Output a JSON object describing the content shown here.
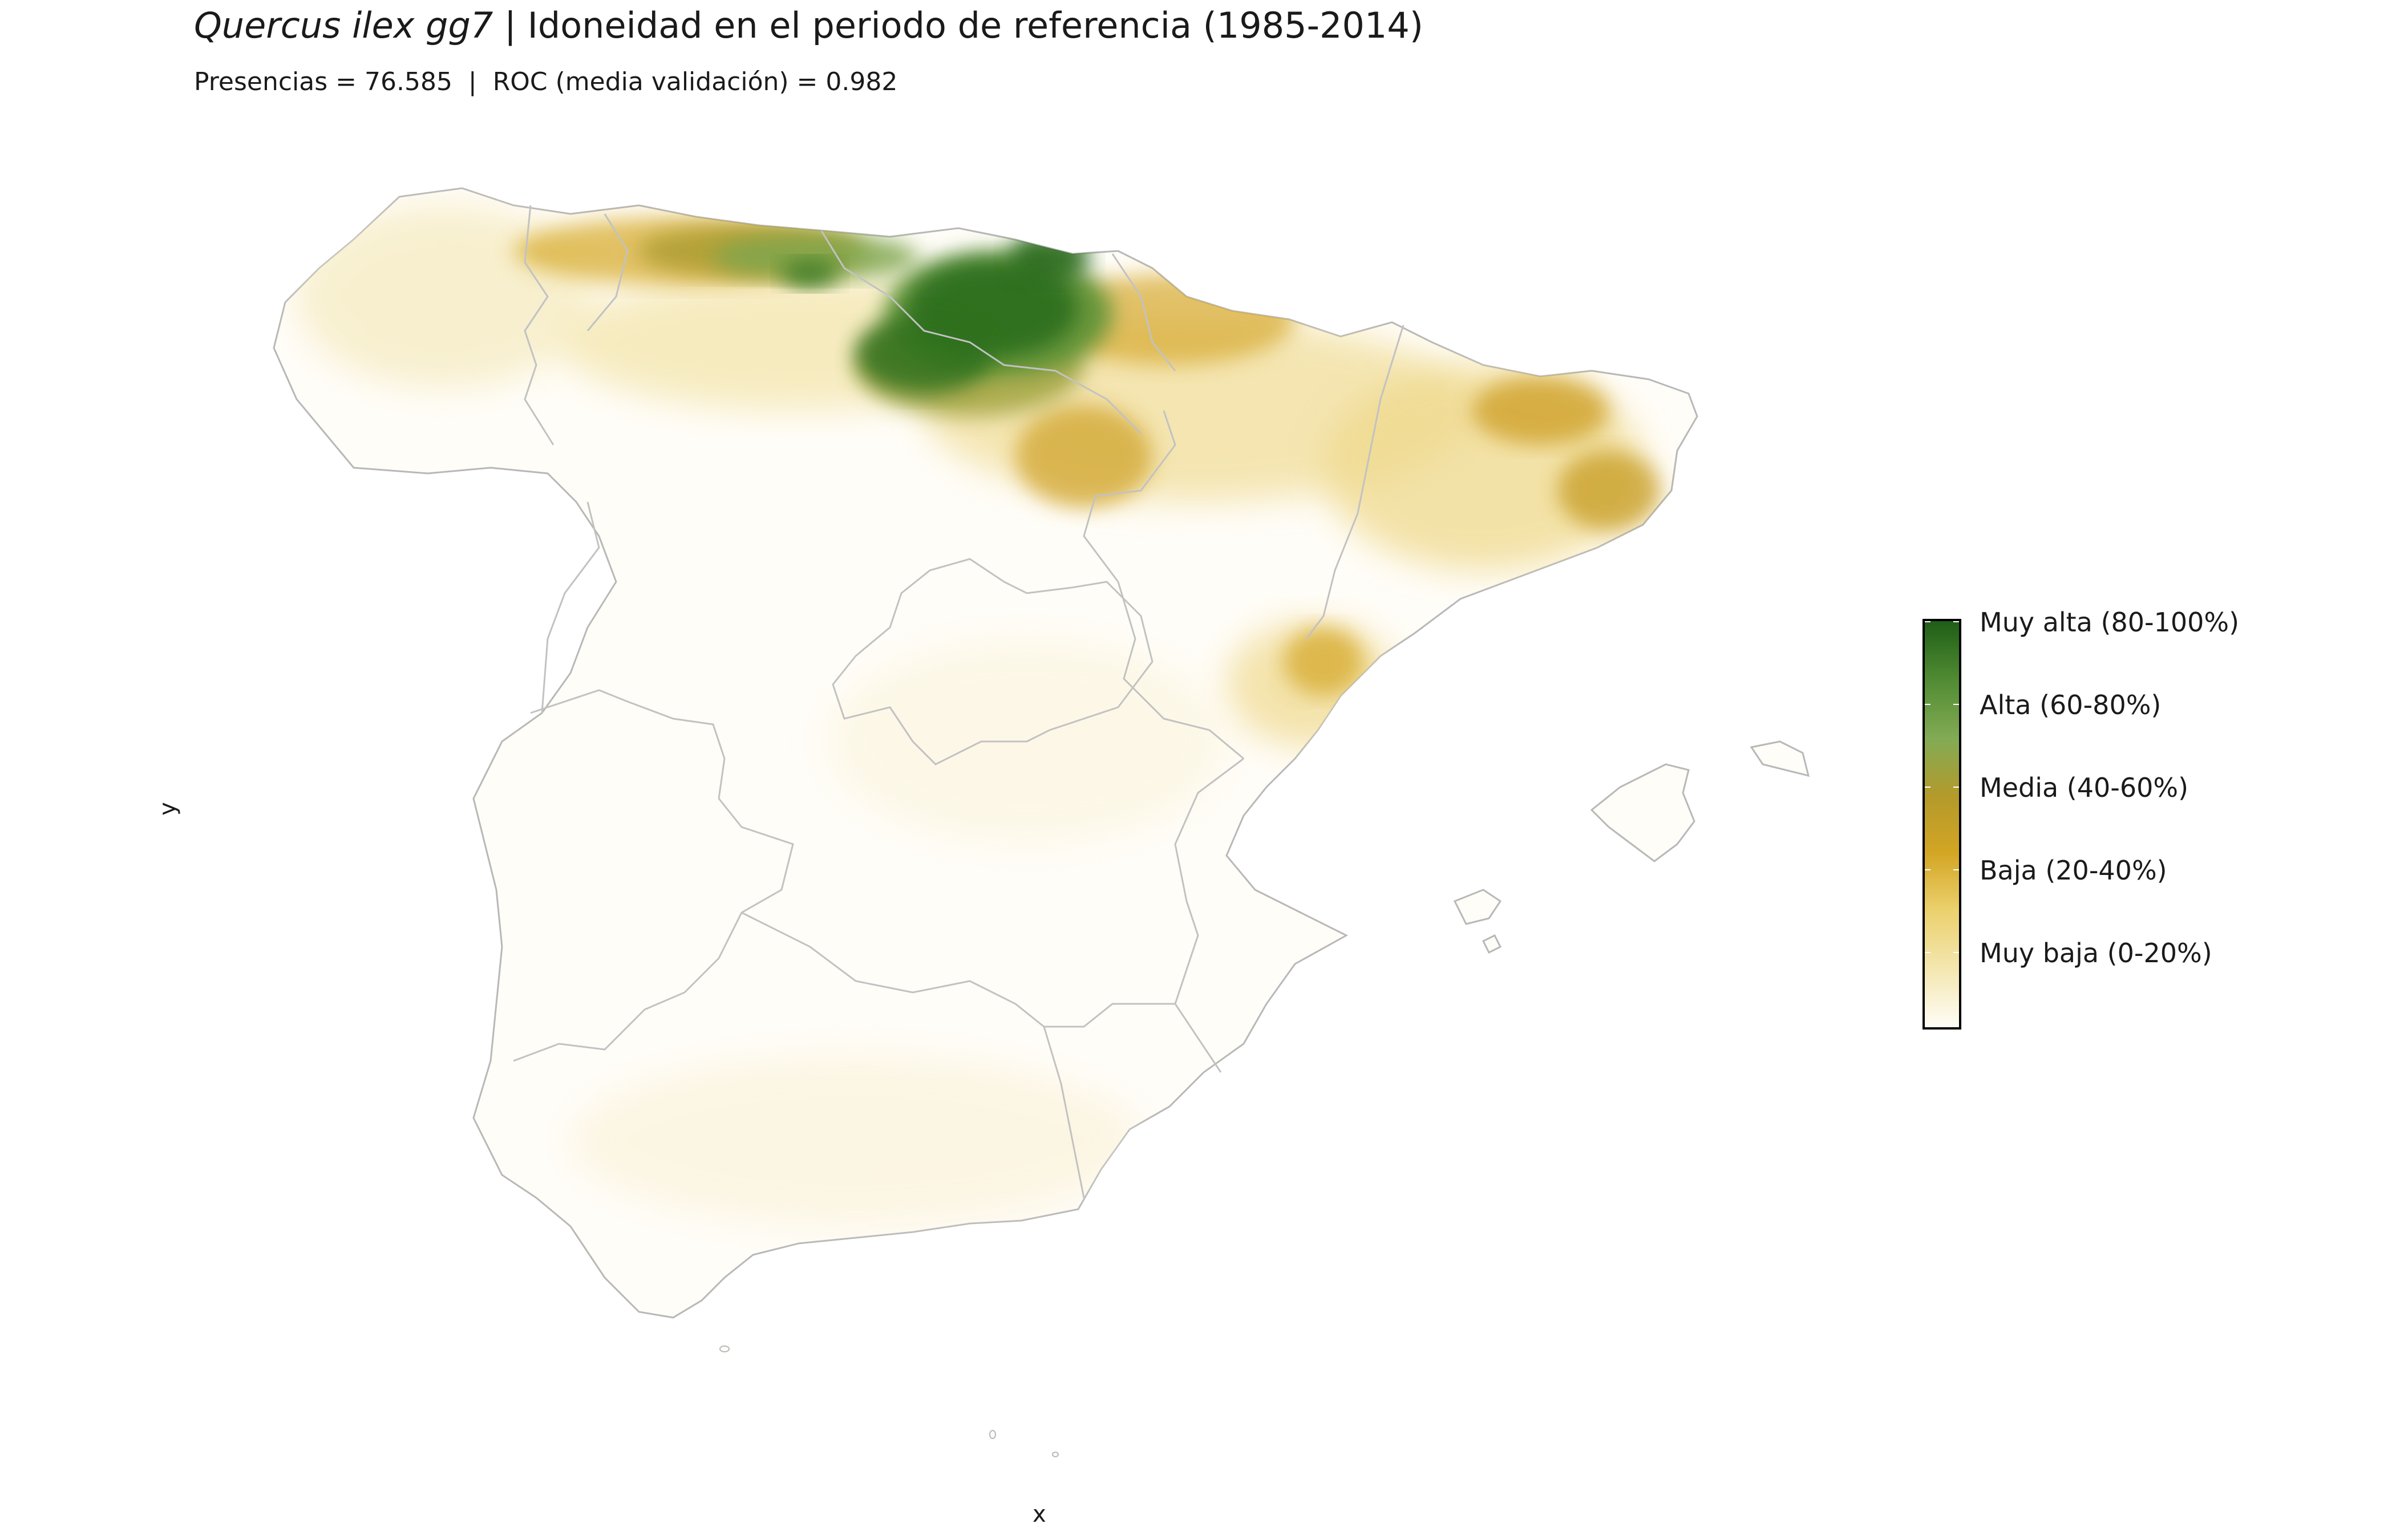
{
  "title": {
    "species": "Quercus ilex gg7",
    "separator": " | ",
    "text": "Idoneidad en el periodo de referencia (1985-2014)"
  },
  "subtitle": "Presencias = 76.585  |  ROC (media validación) = 0.982",
  "axes": {
    "x_label": "x",
    "y_label": "y"
  },
  "legend": {
    "colors": [
      "#fffdf6",
      "#f4e7b2",
      "#ebd06c",
      "#d3a524",
      "#b39a2b",
      "#83ab55",
      "#4f8a32",
      "#1f5e17"
    ],
    "labels": [
      "Muy alta (80-100%)",
      "Alta (60-80%)",
      "Media (40-60%)",
      "Baja (20-40%)",
      "Muy baja (0-20%)"
    ]
  },
  "map": {
    "land_color": "#fffdf8",
    "border_color": "#b8b8b8"
  }
}
